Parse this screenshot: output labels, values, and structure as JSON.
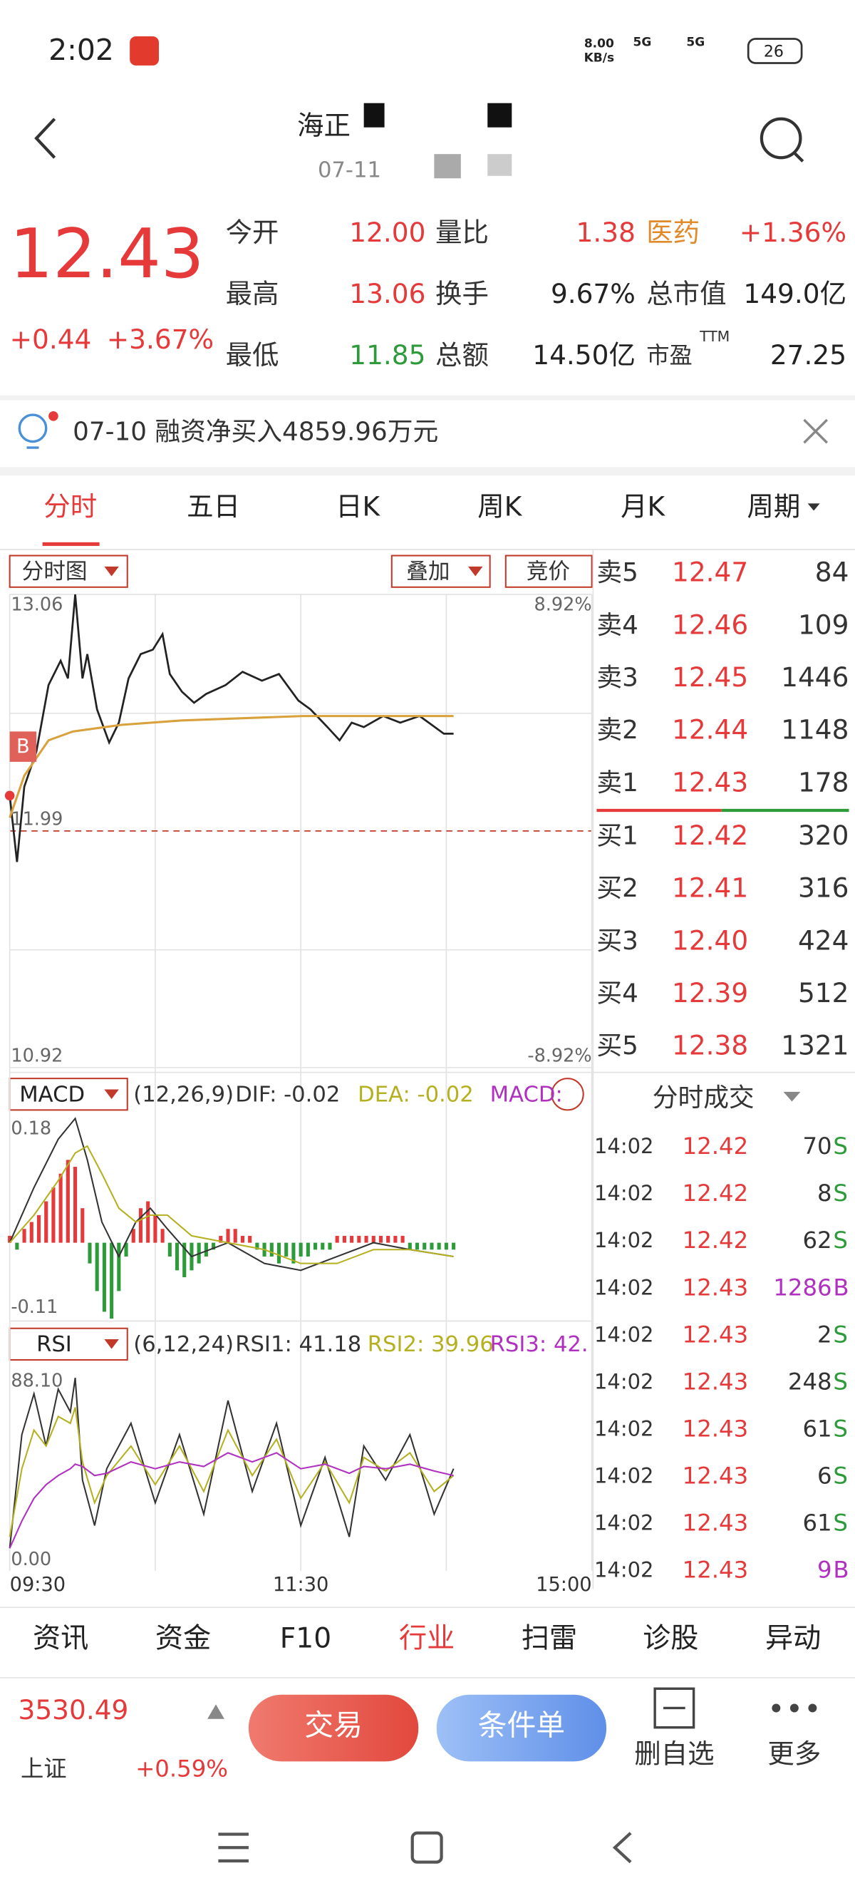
{
  "status_bar": {
    "time": "2:02",
    "net_speed": "8.00",
    "net_unit": "KB/s",
    "signal_1": "5G",
    "signal_2": "5G",
    "battery": "26"
  },
  "header": {
    "title": "海正",
    "subtitle": "07-11"
  },
  "quote": {
    "price": "12.43",
    "change": "+0.44",
    "change_pct": "+3.67%",
    "rows": [
      [
        {
          "label": "今开",
          "value": "12.00"
        },
        {
          "label": "量比",
          "value": "1.38"
        },
        {
          "label": "医药",
          "value": "+1.36%"
        }
      ],
      [
        {
          "label": "最高",
          "value": "13.06"
        },
        {
          "label": "换手",
          "value": "9.67%"
        },
        {
          "label": "总市值",
          "value": "149.0亿"
        }
      ],
      [
        {
          "label": "最低",
          "value": "11.85"
        },
        {
          "label": "总额",
          "value": "14.50亿"
        },
        {
          "label": "市盈",
          "sup": "TTM",
          "value": "27.25"
        }
      ]
    ]
  },
  "notice": "07-10 融资净买入4859.96万元",
  "tabs": [
    "分时",
    "五日",
    "日K",
    "周K",
    "月K",
    "周期"
  ],
  "active_tab": 0,
  "chart_controls": [
    "分时图",
    "叠加",
    "竞价"
  ],
  "intraday": {
    "type": "line",
    "buy_marker": "B",
    "xlim": [
      0,
      240
    ],
    "xticks": [
      {
        "value": 0,
        "label": "09:30"
      },
      {
        "value": 120,
        "label": "11:30"
      },
      {
        "value": 240,
        "label": "15:00"
      }
    ],
    "ylim": [
      10.92,
      13.06
    ],
    "yticks": [
      13.06,
      11.99,
      10.92
    ],
    "y2lim": [
      -8.92,
      8.92
    ],
    "y2ticks": [
      {
        "value": 8.92,
        "label": "8.92%"
      },
      {
        "value": -8.92,
        "label": "-8.92%"
      }
    ],
    "series": [
      {
        "color": "#222222",
        "x": [
          0,
          3,
          6,
          11,
          16,
          21,
          24,
          27,
          30,
          32,
          36,
          41,
          45,
          49,
          54,
          59,
          63,
          66,
          71,
          76,
          81,
          89,
          96,
          104,
          111,
          119,
          124,
          131,
          136,
          141,
          146,
          154,
          161,
          169,
          174,
          179,
          183
        ],
        "values": [
          12.15,
          11.85,
          12.19,
          12.35,
          12.65,
          12.76,
          12.68,
          13.06,
          12.68,
          12.79,
          12.54,
          12.39,
          12.48,
          12.68,
          12.79,
          12.81,
          12.88,
          12.7,
          12.62,
          12.57,
          12.61,
          12.65,
          12.71,
          12.67,
          12.7,
          12.58,
          12.54,
          12.46,
          12.4,
          12.48,
          12.46,
          12.51,
          12.48,
          12.51,
          12.47,
          12.43,
          12.43
        ]
      },
      {
        "color": "#d9a13b",
        "x": [
          0,
          6,
          16,
          26,
          46,
          71,
          121,
          183
        ],
        "values": [
          12.05,
          12.24,
          12.4,
          12.44,
          12.47,
          12.49,
          12.51,
          12.51
        ]
      }
    ]
  },
  "macd": {
    "type": "bar",
    "title": "MACD",
    "params": "(12,26,9)",
    "indicators": [
      "DIF: -0.02",
      "DEA: -0.02",
      "MACD:"
    ],
    "ylim": [
      -0.11,
      0.18
    ],
    "yticks": [
      0.18,
      -0.11
    ],
    "up_color": "#e5393a",
    "down_color": "#2e9b3a",
    "x": [
      0,
      3,
      6,
      9,
      12,
      15,
      18,
      21,
      24,
      27,
      30,
      33,
      36,
      39,
      42,
      45,
      48,
      51,
      54,
      57,
      60,
      63,
      66,
      69,
      72,
      75,
      78,
      81,
      84,
      87,
      90,
      93,
      96,
      99,
      102,
      105,
      108,
      111,
      114,
      117,
      120,
      123,
      126,
      129,
      132,
      135,
      138,
      141,
      144,
      147,
      150,
      153,
      156,
      159,
      162,
      165,
      168,
      171,
      174,
      177,
      180,
      183
    ],
    "values": [
      0.01,
      -0.01,
      0.02,
      0.03,
      0.04,
      0.06,
      0.08,
      0.1,
      0.12,
      0.11,
      0.05,
      -0.03,
      -0.07,
      -0.1,
      -0.11,
      -0.07,
      -0.02,
      0.02,
      0.05,
      0.06,
      0.04,
      0.02,
      -0.02,
      -0.04,
      -0.05,
      -0.04,
      -0.03,
      -0.02,
      -0.01,
      0.01,
      0.02,
      0.02,
      0.01,
      0.01,
      -0.01,
      -0.02,
      -0.02,
      -0.03,
      -0.02,
      -0.03,
      -0.02,
      -0.02,
      -0.01,
      -0.01,
      -0.01,
      0.01,
      0.01,
      0.01,
      0.01,
      0.01,
      0.01,
      0.01,
      0.01,
      0.01,
      0.01,
      -0.01,
      -0.01,
      -0.01,
      -0.01,
      -0.01,
      -0.01,
      -0.01
    ],
    "series": [
      {
        "color": "#333333",
        "x": [
          0,
          10,
          20,
          27,
          32,
          38,
          45,
          52,
          58,
          65,
          75,
          90,
          105,
          120,
          135,
          150,
          165,
          183
        ],
        "values": [
          0.0,
          0.08,
          0.15,
          0.18,
          0.12,
          0.03,
          -0.02,
          0.03,
          0.05,
          0.02,
          -0.02,
          0.0,
          -0.03,
          -0.04,
          -0.02,
          0.0,
          -0.01,
          -0.02
        ]
      },
      {
        "color": "#b5b020",
        "x": [
          0,
          10,
          20,
          27,
          32,
          38,
          45,
          52,
          58,
          65,
          75,
          90,
          105,
          120,
          135,
          150,
          165,
          183
        ],
        "values": [
          0.0,
          0.04,
          0.09,
          0.13,
          0.14,
          0.1,
          0.05,
          0.03,
          0.04,
          0.04,
          0.01,
          0.0,
          -0.01,
          -0.03,
          -0.03,
          -0.01,
          -0.01,
          -0.02
        ]
      }
    ]
  },
  "rsi": {
    "type": "line",
    "title": "RSI",
    "params": "(6,12,24)",
    "indicators": [
      "RSI1: 41.18",
      "RSI2: 39.96",
      "RSI3: 42."
    ],
    "ylim": [
      0,
      88.1
    ],
    "yticks": [
      {
        "value": 88.1,
        "label": "88.10"
      },
      {
        "value": 0,
        "label": "0.00"
      }
    ],
    "series": [
      {
        "color": "#333333",
        "x": [
          0,
          5,
          10,
          15,
          20,
          25,
          27,
          30,
          35,
          40,
          50,
          60,
          70,
          80,
          90,
          100,
          110,
          120,
          130,
          140,
          146,
          155,
          165,
          175,
          183
        ],
        "values": [
          10,
          60,
          78,
          55,
          80,
          70,
          85,
          40,
          20,
          45,
          65,
          30,
          60,
          25,
          75,
          35,
          65,
          20,
          50,
          15,
          55,
          40,
          60,
          25,
          45
        ]
      },
      {
        "color": "#b5b020",
        "x": [
          0,
          5,
          10,
          15,
          20,
          25,
          27,
          30,
          35,
          40,
          50,
          60,
          70,
          80,
          90,
          100,
          110,
          120,
          130,
          140,
          146,
          155,
          165,
          175,
          183
        ],
        "values": [
          15,
          45,
          62,
          55,
          68,
          65,
          72,
          48,
          30,
          42,
          55,
          38,
          55,
          35,
          62,
          42,
          58,
          32,
          48,
          30,
          50,
          44,
          52,
          35,
          42
        ]
      },
      {
        "color": "#b030c0",
        "x": [
          0,
          5,
          10,
          15,
          20,
          25,
          27,
          30,
          35,
          40,
          50,
          60,
          70,
          80,
          90,
          100,
          110,
          120,
          130,
          140,
          146,
          155,
          165,
          175,
          183
        ],
        "values": [
          10,
          22,
          32,
          38,
          42,
          45,
          47,
          46,
          42,
          43,
          48,
          45,
          48,
          46,
          52,
          48,
          52,
          45,
          47,
          43,
          46,
          45,
          47,
          44,
          42
        ]
      }
    ]
  },
  "order_book": [
    {
      "label": "卖5",
      "price": "12.47",
      "volume": 84
    },
    {
      "label": "卖4",
      "price": "12.46",
      "volume": 109
    },
    {
      "label": "卖3",
      "price": "12.45",
      "volume": 1446
    },
    {
      "label": "卖2",
      "price": "12.44",
      "volume": 1148
    },
    {
      "label": "卖1",
      "price": "12.43",
      "volume": 178
    },
    {
      "label": "买1",
      "price": "12.42",
      "volume": 320
    },
    {
      "label": "买2",
      "price": "12.41",
      "volume": 316
    },
    {
      "label": "买3",
      "price": "12.40",
      "volume": 424
    },
    {
      "label": "买4",
      "price": "12.39",
      "volume": 512
    },
    {
      "label": "买5",
      "price": "12.38",
      "volume": 1321
    }
  ],
  "trades_title": "分时成交",
  "trades": [
    {
      "time": "14:02",
      "price": "12.42",
      "volume": 70,
      "side": "S"
    },
    {
      "time": "14:02",
      "price": "12.42",
      "volume": 8,
      "side": "S"
    },
    {
      "time": "14:02",
      "price": "12.42",
      "volume": 62,
      "side": "S"
    },
    {
      "time": "14:02",
      "price": "12.43",
      "volume": 1286,
      "side": "B"
    },
    {
      "time": "14:02",
      "price": "12.43",
      "volume": 2,
      "side": "S"
    },
    {
      "time": "14:02",
      "price": "12.43",
      "volume": 248,
      "side": "S"
    },
    {
      "time": "14:02",
      "price": "12.43",
      "volume": 61,
      "side": "S"
    },
    {
      "time": "14:02",
      "price": "12.43",
      "volume": 6,
      "side": "S"
    },
    {
      "time": "14:02",
      "price": "12.43",
      "volume": 61,
      "side": "S"
    },
    {
      "time": "14:02",
      "price": "12.43",
      "volume": 9,
      "side": "B"
    }
  ],
  "bottom_tabs": [
    "资讯",
    "资金",
    "F10",
    "行业",
    "扫雷",
    "诊股",
    "异动"
  ],
  "active_bottom_tab": 3,
  "index": {
    "value": "3530.49",
    "name": "上证",
    "change": "+0.59%"
  },
  "actions": [
    "交易",
    "条件单",
    "删自选",
    "更多"
  ]
}
